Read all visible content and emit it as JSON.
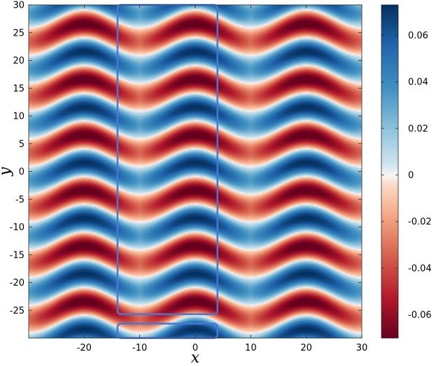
{
  "chart_data": {
    "type": "heatmap",
    "title": "",
    "xlabel": "x",
    "ylabel": "y",
    "xlim": [
      -30,
      30
    ],
    "ylim": [
      -30,
      30
    ],
    "x_ticks": [
      -20,
      -10,
      0,
      10,
      20,
      30
    ],
    "y_ticks": [
      30,
      25,
      20,
      15,
      10,
      5,
      0,
      -5,
      -10,
      -15,
      -20,
      -25
    ],
    "colorbar": {
      "range": [
        -0.07,
        0.073
      ],
      "ticks": [
        {
          "value": 0.06,
          "label": "0.06"
        },
        {
          "value": 0.04,
          "label": "0.04"
        },
        {
          "value": 0.02,
          "label": "0.02"
        },
        {
          "value": 0,
          "label": "0"
        },
        {
          "value": -0.02,
          "label": "-0.02"
        },
        {
          "value": -0.04,
          "label": "-0.04"
        },
        {
          "value": -0.06,
          "label": "-0.06"
        }
      ],
      "colormap": "diverging red-white-blue"
    },
    "field": {
      "description": "periodic pattern, period ~20 in x and ~10 in y",
      "max_value": 0.073,
      "min_value": -0.07
    },
    "annotations": [
      {
        "type": "rectangle",
        "x": [
          -14,
          4
        ],
        "y": [
          -25.7,
          30
        ]
      },
      {
        "type": "rectangle",
        "x": [
          -14,
          4
        ],
        "y": [
          -30,
          -27.4
        ]
      }
    ],
    "colors": {
      "highlight_box": "#4a76d6",
      "positive": "#0b3b78",
      "negative": "#7a0b1e",
      "zero": "#f7f7f7"
    }
  }
}
